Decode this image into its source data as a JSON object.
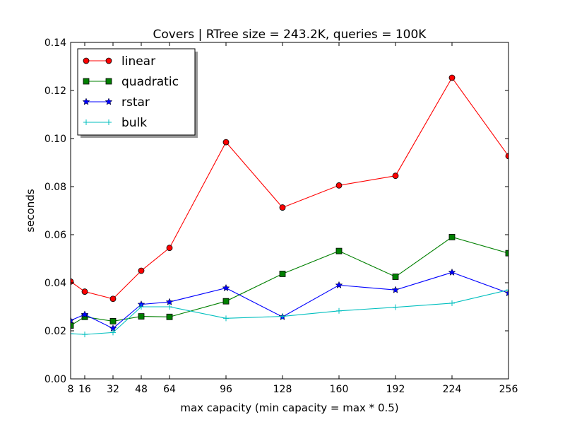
{
  "chart_data": {
    "type": "line",
    "title": "Covers | RTree size = 243.2K, queries = 100K",
    "xlabel": "max capacity (min capacity = max * 0.5)",
    "ylabel": "seconds",
    "xlim": [
      8,
      256
    ],
    "ylim": [
      0,
      0.14
    ],
    "xticks": [
      8,
      16,
      32,
      48,
      64,
      96,
      128,
      160,
      192,
      224,
      256
    ],
    "xtick_labels": [
      "8",
      "16",
      "32",
      "48",
      "64",
      "96",
      "128",
      "160",
      "192",
      "224",
      "256"
    ],
    "yticks": [
      0,
      0.02,
      0.04,
      0.06,
      0.08,
      0.1,
      0.12,
      0.14
    ],
    "ytick_labels": [
      "0.00",
      "0.02",
      "0.04",
      "0.06",
      "0.08",
      "0.10",
      "0.12",
      "0.14"
    ],
    "grid": false,
    "legend_position": "top-left",
    "x": [
      8,
      16,
      32,
      48,
      64,
      96,
      128,
      160,
      192,
      224,
      256
    ],
    "series": [
      {
        "name": "linear",
        "color": "#ff0000",
        "marker": "circle",
        "values": [
          0.0405,
          0.0363,
          0.0333,
          0.045,
          0.0545,
          0.0985,
          0.0713,
          0.0805,
          0.0845,
          0.1253,
          0.0927
        ]
      },
      {
        "name": "quadratic",
        "color": "#008000",
        "marker": "square",
        "values": [
          0.0222,
          0.0258,
          0.024,
          0.026,
          0.0258,
          0.0323,
          0.0437,
          0.0532,
          0.0425,
          0.059,
          0.0523
        ]
      },
      {
        "name": "rstar",
        "color": "#0000ff",
        "marker": "star",
        "values": [
          0.0243,
          0.0268,
          0.021,
          0.031,
          0.032,
          0.0378,
          0.0258,
          0.039,
          0.037,
          0.0443,
          0.0357
        ]
      },
      {
        "name": "bulk",
        "color": "#00bfbf",
        "marker": "plus",
        "values": [
          0.0188,
          0.0185,
          0.0193,
          0.03,
          0.03,
          0.0252,
          0.026,
          0.0283,
          0.0298,
          0.0315,
          0.037
        ]
      }
    ]
  }
}
